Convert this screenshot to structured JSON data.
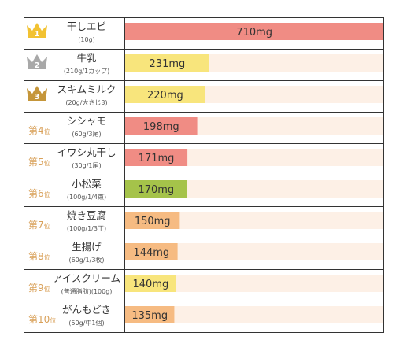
{
  "chart_data": {
    "type": "bar",
    "orientation": "horizontal",
    "unit": "mg",
    "xlim": [
      0,
      800
    ],
    "rank_suffix": "位",
    "categories": [
      {
        "rank": "1",
        "name": "干しエビ",
        "serving": "(10g)",
        "value": 710,
        "label": "710mg",
        "color": "#f08c84",
        "badge": "gold-crown"
      },
      {
        "rank": "2",
        "name": "牛乳",
        "serving": "(210g/1カップ)",
        "value": 231,
        "label": "231mg",
        "color": "#f8e57c",
        "badge": "silver-crown"
      },
      {
        "rank": "3",
        "name": "スキムミルク",
        "serving": "(20g/大さじ3)",
        "value": 220,
        "label": "220mg",
        "color": "#f8e57c",
        "badge": "bronze-crown"
      },
      {
        "rank": "第4",
        "name": "シシャモ",
        "serving": "(60g/3尾)",
        "value": 198,
        "label": "198mg",
        "color": "#f08c84"
      },
      {
        "rank": "第5",
        "name": "イワシ丸干し",
        "serving": "(30g/1尾)",
        "value": 171,
        "label": "171mg",
        "color": "#f08c84"
      },
      {
        "rank": "第6",
        "name": "小松菜",
        "serving": "(100g/1/4束)",
        "value": 170,
        "label": "170mg",
        "color": "#a5c34a"
      },
      {
        "rank": "第7",
        "name": "焼き豆腐",
        "serving": "(100g/1/3丁)",
        "value": 150,
        "label": "150mg",
        "color": "#f6bb82"
      },
      {
        "rank": "第8",
        "name": "生揚げ",
        "serving": "(60g/1/3枚)",
        "value": 144,
        "label": "144mg",
        "color": "#f6bb82"
      },
      {
        "rank": "第9",
        "name": "アイスクリーム",
        "serving": "(普通脂肪)(100g)",
        "value": 140,
        "label": "140mg",
        "color": "#f8e57c"
      },
      {
        "rank": "第10",
        "name": "がんもどき",
        "serving": "(50g/中1個)",
        "value": 135,
        "label": "135mg",
        "color": "#f6bb82"
      }
    ],
    "track_color": "#fdf0e6",
    "border_color": "#333333"
  }
}
